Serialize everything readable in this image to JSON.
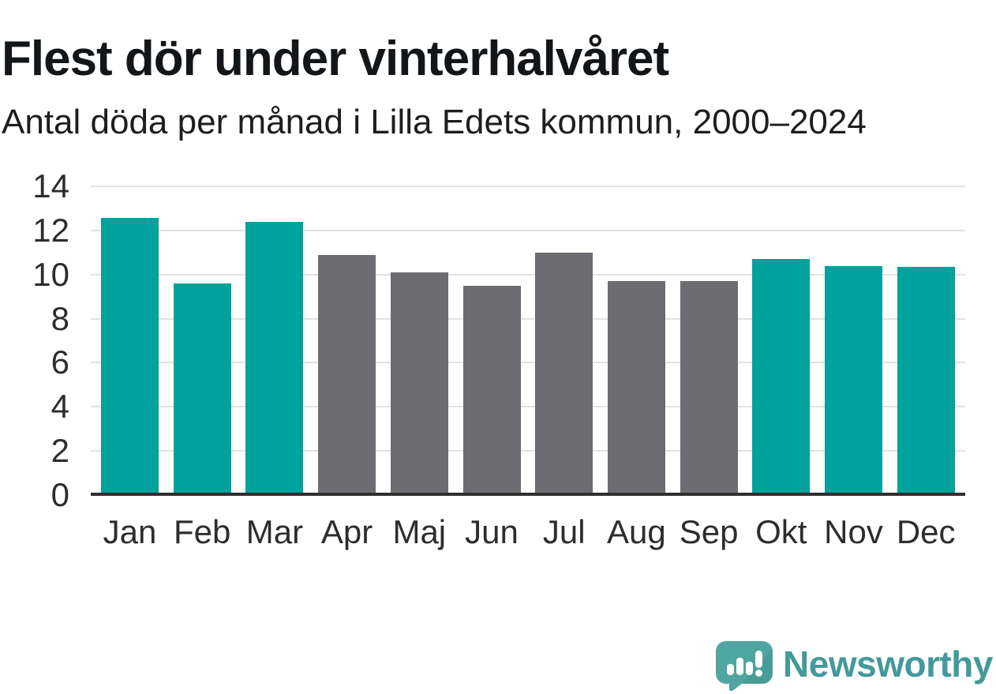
{
  "header": {
    "title": "Flest dör under vinterhalvåret",
    "subtitle": "Antal döda per månad i Lilla Edets kommun, 2000–2024"
  },
  "chart_data": {
    "type": "bar",
    "title": "Flest dör under vinterhalvåret",
    "subtitle": "Antal döda per månad i Lilla Edets kommun, 2000–2024",
    "categories": [
      "Jan",
      "Feb",
      "Mar",
      "Apr",
      "Maj",
      "Jun",
      "Jul",
      "Aug",
      "Sep",
      "Okt",
      "Nov",
      "Dec"
    ],
    "values": [
      12.55,
      9.6,
      12.4,
      10.9,
      10.1,
      9.5,
      11.0,
      9.7,
      9.7,
      10.7,
      10.4,
      10.35
    ],
    "bar_color_keys": [
      "teal",
      "teal",
      "teal",
      "gray",
      "gray",
      "gray",
      "gray",
      "gray",
      "gray",
      "teal",
      "teal",
      "teal"
    ],
    "colors": {
      "teal": "#00a29b",
      "gray": "#6c6c71"
    },
    "xlabel": "",
    "ylabel": "",
    "ylim": [
      0,
      14
    ],
    "yticks": [
      0,
      2,
      4,
      6,
      8,
      10,
      12,
      14
    ],
    "grid": "horizontal",
    "legend": "none",
    "gridline_color": "#e2e2e2",
    "axis_line_color": "#2f2f2f",
    "tick_label_color": "#2d2d2d"
  },
  "footer": {
    "brand": "Newsworthy",
    "brand_color": "#43999b",
    "logo_bubble_color": "#4fa5a0",
    "logo_bubble_shade_color": "#42968f",
    "logo_glyph_color": "#ffffff"
  }
}
